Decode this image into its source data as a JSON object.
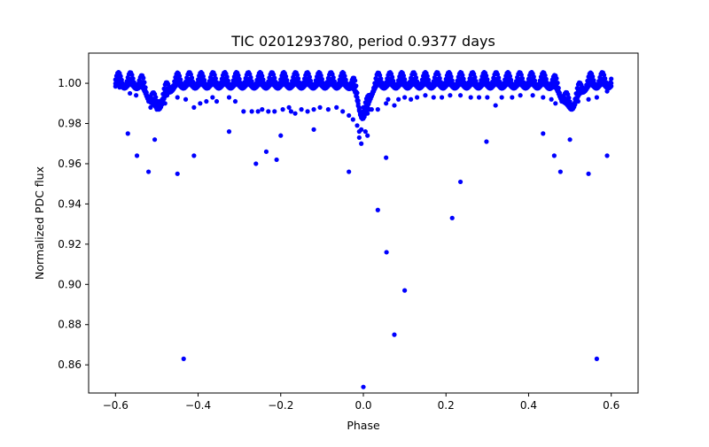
{
  "chart_data": {
    "type": "scatter",
    "title": "TIC 0201293780, period 0.9377 days",
    "xlabel": "Phase",
    "ylabel": "Normalized PDC flux",
    "xlim": [
      -0.665,
      0.665
    ],
    "ylim": [
      0.846,
      1.015
    ],
    "xticks": [
      -0.6,
      -0.4,
      -0.2,
      0.0,
      0.2,
      0.4,
      0.6
    ],
    "xtick_labels": [
      "−0.6",
      "−0.4",
      "−0.2",
      "0.0",
      "0.2",
      "0.4",
      "0.6"
    ],
    "yticks": [
      0.86,
      0.88,
      0.9,
      0.92,
      0.94,
      0.96,
      0.98,
      1.0
    ],
    "ytick_labels": [
      "0.86",
      "0.88",
      "0.90",
      "0.92",
      "0.94",
      "0.96",
      "0.98",
      "1.00"
    ],
    "grid": false,
    "series": [
      {
        "color": "#0000ff",
        "x": [
          -0.59,
          -0.565,
          -0.55,
          -0.52,
          -0.515,
          -0.5,
          -0.495,
          -0.48,
          -0.475,
          -0.45,
          -0.43,
          -0.41,
          -0.395,
          -0.38,
          -0.365,
          -0.355,
          -0.325,
          -0.31,
          -0.29,
          -0.27,
          -0.255,
          -0.245,
          -0.23,
          -0.215,
          -0.195,
          -0.18,
          -0.175,
          -0.165,
          -0.15,
          -0.135,
          -0.12,
          -0.105,
          -0.085,
          -0.065,
          -0.05,
          -0.035,
          -0.025,
          -0.015,
          -0.01,
          -0.005,
          0.0,
          0.005,
          0.01,
          0.015,
          0.02,
          0.035,
          0.055,
          0.06,
          0.075,
          0.085,
          0.1,
          0.115,
          0.13,
          0.15,
          0.17,
          0.19,
          0.21,
          0.235,
          0.26,
          0.28,
          0.3,
          0.32,
          0.335,
          0.36,
          0.38,
          0.41,
          0.435,
          0.455,
          0.465,
          0.48,
          0.5,
          0.505,
          0.52,
          0.545,
          0.565,
          0.59,
          -0.57,
          -0.548,
          -0.52,
          -0.505,
          -0.45,
          -0.435,
          -0.41,
          -0.325,
          -0.26,
          -0.235,
          -0.21,
          -0.2,
          -0.12,
          -0.035,
          -0.01,
          -0.005,
          0.0,
          0.005,
          0.01,
          0.035,
          0.055,
          0.056,
          0.075,
          0.1,
          0.215,
          0.235,
          0.298,
          0.435,
          0.462,
          0.477,
          0.5,
          0.545,
          0.565,
          0.59
        ],
        "y": [
          0.998,
          0.995,
          0.994,
          0.991,
          0.988,
          0.987,
          0.991,
          0.99,
          0.994,
          0.993,
          0.992,
          0.988,
          0.99,
          0.991,
          0.993,
          0.991,
          0.993,
          0.991,
          0.986,
          0.986,
          0.986,
          0.987,
          0.986,
          0.986,
          0.987,
          0.988,
          0.986,
          0.985,
          0.987,
          0.986,
          0.987,
          0.988,
          0.987,
          0.988,
          0.986,
          0.984,
          0.982,
          0.979,
          0.976,
          0.977,
          0.988,
          0.985,
          0.985,
          0.987,
          0.987,
          0.987,
          0.99,
          0.992,
          0.989,
          0.992,
          0.993,
          0.992,
          0.993,
          0.994,
          0.993,
          0.993,
          0.994,
          0.994,
          0.993,
          0.993,
          0.993,
          0.989,
          0.993,
          0.993,
          0.994,
          0.994,
          0.993,
          0.992,
          0.99,
          0.991,
          0.99,
          0.988,
          0.991,
          0.992,
          0.993,
          0.996,
          0.975,
          0.964,
          0.956,
          0.972,
          0.955,
          0.863,
          0.964,
          0.976,
          0.96,
          0.966,
          0.962,
          0.974,
          0.977,
          0.956,
          0.973,
          0.97,
          0.849,
          0.976,
          0.974,
          0.937,
          0.963,
          0.916,
          0.875,
          0.897,
          0.933,
          0.951,
          0.971,
          0.975,
          0.964,
          0.956,
          0.972,
          0.955,
          0.863,
          0.964
        ]
      }
    ],
    "dense_band": {
      "phase_range": [
        -0.6,
        0.6
      ],
      "color": "#0000ff",
      "upper_flux": 1.0,
      "eclipse_phase": 0.0,
      "eclipse_min_flux": 0.984,
      "secondary_eclipse_phases": [
        -0.5,
        0.5
      ],
      "secondary_eclipse_min_flux": 0.989
    }
  }
}
